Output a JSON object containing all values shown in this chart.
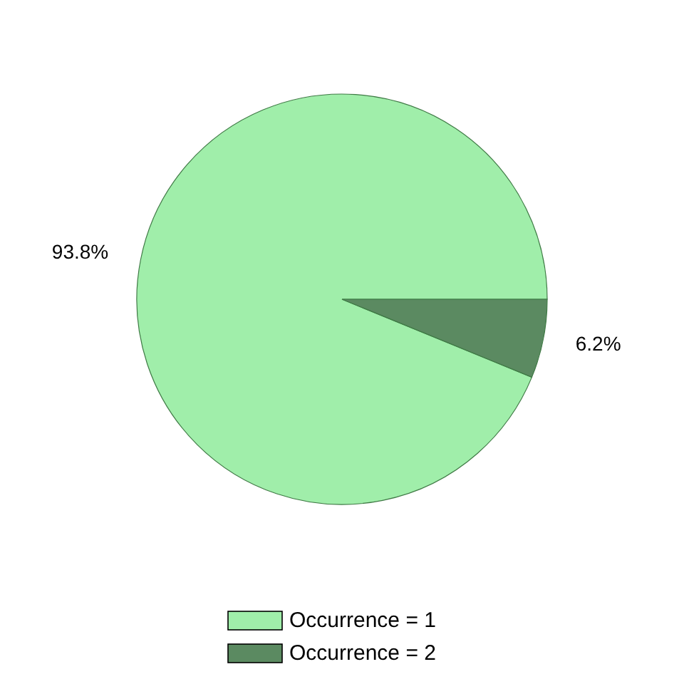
{
  "chart_data": {
    "type": "pie",
    "categories": [
      "Occurrence = 1",
      "Occurrence = 2"
    ],
    "values": [
      93.8,
      6.2
    ],
    "value_labels": [
      "93.8%",
      "6.2%"
    ],
    "colors": [
      "#a0eeaa",
      "#5b8a61"
    ],
    "legend": "bottom"
  }
}
